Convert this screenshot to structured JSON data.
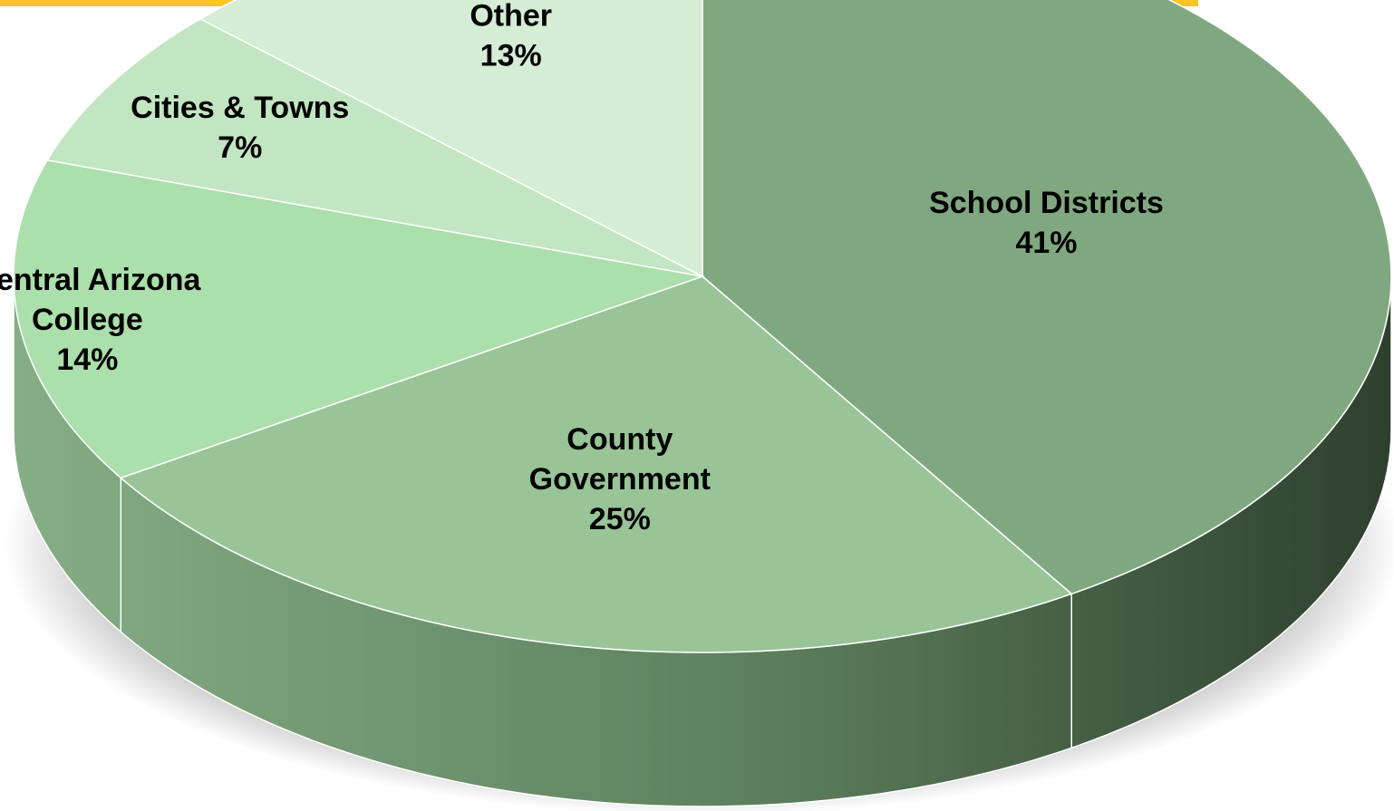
{
  "colors": {
    "top_bar": "#F9C52B",
    "outline": "#ffffff"
  },
  "chart_data": {
    "type": "pie",
    "three_d": true,
    "legend": "none",
    "slices": [
      {
        "label_lines": [
          "School Districts"
        ],
        "percent_label": "41%",
        "value": 41,
        "color": "#80a880"
      },
      {
        "label_lines": [
          "County",
          "Government"
        ],
        "percent_label": "25%",
        "value": 25,
        "color": "#98c498"
      },
      {
        "label_lines": [
          "Central Arizona",
          "College"
        ],
        "percent_label": "14%",
        "value": 14,
        "color": "#abdfab"
      },
      {
        "label_lines": [
          "Cities & Towns"
        ],
        "percent_label": "7%",
        "value": 7,
        "color": "#c2e5c2"
      },
      {
        "label_lines": [
          "Other"
        ],
        "percent_label": "13%",
        "value": 13,
        "color": "#d5ecd5"
      }
    ]
  }
}
